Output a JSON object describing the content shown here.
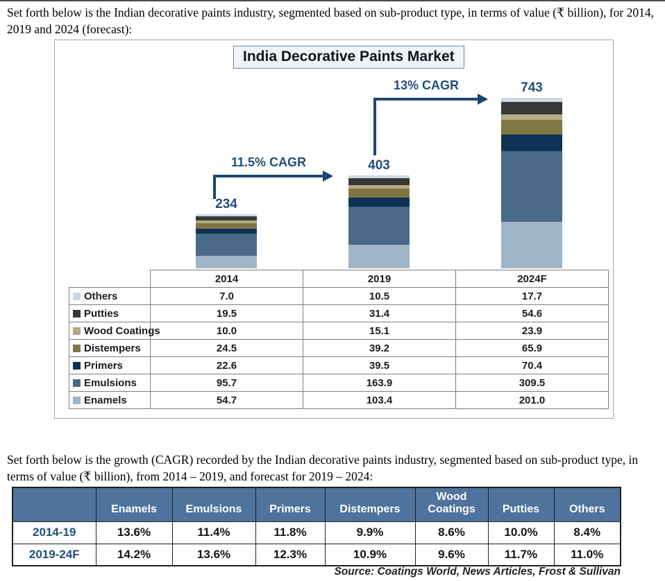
{
  "page": {
    "paragraph_1": "Set forth below is the Indian decorative paints industry, segmented based on sub-product type, in terms of value (₹ billion), for 2014, 2019 and 2024 (forecast):",
    "paragraph_2": "Set forth below is the growth (CAGR) recorded by the Indian decorative paints industry, segmented based on sub-product type, in terms of value (₹ billion), from 2014 – 2019, and forecast for 2019 – 2024:",
    "source": "Source: Coatings World, News Articles, Frost & Sullivan"
  },
  "colors": {
    "accent_blue": "#1f4e79",
    "arrow_blue": "#1c4670",
    "table2_header_bg": "#4e739c"
  },
  "chart_data": [
    {
      "type": "bar",
      "stacked": true,
      "title": "India Decorative Paints Market",
      "unit": "₹ billion",
      "categories": [
        "2014",
        "2019",
        "2024F"
      ],
      "totals": [
        "234",
        "403",
        "743"
      ],
      "series": [
        {
          "name": "Others",
          "color": "#ccd8e3",
          "values": [
            "7.0",
            "10.5",
            "17.7"
          ]
        },
        {
          "name": "Putties",
          "color": "#383838",
          "values": [
            "19.5",
            "31.4",
            "54.6"
          ]
        },
        {
          "name": "Wood Coatings",
          "color": "#b3aa80",
          "values": [
            "10.0",
            "15.1",
            "23.9"
          ]
        },
        {
          "name": "Distempers",
          "color": "#7e7643",
          "values": [
            "24.5",
            "39.2",
            "65.9"
          ]
        },
        {
          "name": "Primers",
          "color": "#0d3255",
          "values": [
            "22.6",
            "39.5",
            "70.4"
          ]
        },
        {
          "name": "Emulsions",
          "color": "#4a6a89",
          "values": [
            "95.7",
            "163.9",
            "309.5"
          ]
        },
        {
          "name": "Enamels",
          "color": "#9fb4c5",
          "values": [
            "54.7",
            "103.4",
            "201.0"
          ]
        }
      ],
      "stack_order_bottom_to_top": [
        "Enamels",
        "Emulsions",
        "Primers",
        "Distempers",
        "Wood Coatings",
        "Putties",
        "Others"
      ],
      "annotations": [
        {
          "label": "11.5% CAGR",
          "from": "2014",
          "to": "2019"
        },
        {
          "label": "13% CAGR",
          "from": "2019",
          "to": "2024F"
        }
      ],
      "legend_position": "table-left-column",
      "grid": false
    },
    {
      "type": "table",
      "columns": [
        "",
        "Enamels",
        "Emulsions",
        "Primers",
        "Distempers",
        "Wood Coatings",
        "Putties",
        "Others"
      ],
      "rows": [
        {
          "label": "2014-19",
          "values": [
            "13.6%",
            "11.4%",
            "11.8%",
            "9.9%",
            "8.6%",
            "10.0%",
            "8.4%"
          ]
        },
        {
          "label": "2019-24F",
          "values": [
            "14.2%",
            "13.6%",
            "12.3%",
            "10.9%",
            "9.6%",
            "11.7%",
            "11.0%"
          ]
        }
      ]
    }
  ]
}
